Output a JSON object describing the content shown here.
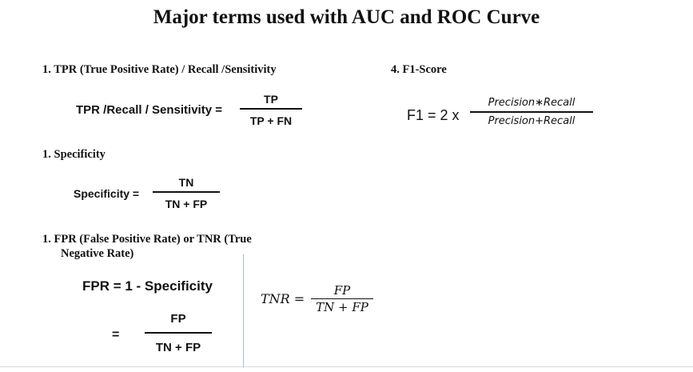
{
  "title": "Major terms used with AUC and ROC Curve",
  "tpr": {
    "heading": "1. TPR (True Positive Rate) / Recall /Sensitivity",
    "lhs": "TPR /Recall / Sensitivity =",
    "numerator": "TP",
    "denominator": "TP + FN"
  },
  "specificity": {
    "heading": "1. Specificity",
    "lhs": "Specificity =",
    "numerator": "TN",
    "denominator": "TN + FP"
  },
  "fpr": {
    "heading_line1": "1. FPR (False Positive Rate) or TNR (True",
    "heading_line2": "Negative Rate)",
    "formula": "FPR = 1 - Specificity",
    "equals": "=",
    "numerator": "FP",
    "denominator": "TN + FP"
  },
  "tnr": {
    "lhs": "TNR =",
    "numerator": "FP",
    "denominator": "TN + FP"
  },
  "f1": {
    "heading": "4. F1-Score",
    "lhs": "F1 = 2 x",
    "numerator": "Precision∗Recall",
    "denominator": "Precision+Recall"
  }
}
